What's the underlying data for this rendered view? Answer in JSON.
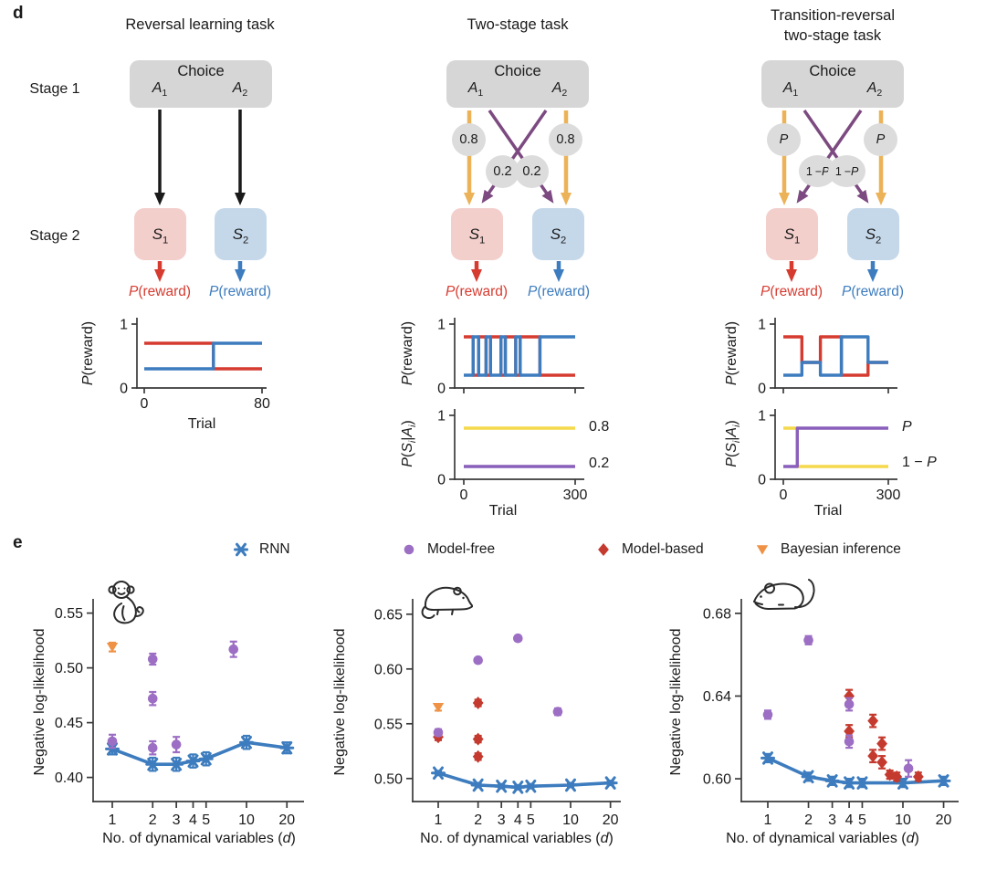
{
  "colors": {
    "black": "#1A1A1A",
    "blue": "#3D7CBE",
    "purple": "#9C6EC4",
    "red": "#C53A2E",
    "orange": "#EF9245",
    "yellow": "#F5D94C",
    "line_purple": "#8A5FBC",
    "line_red": "#D63B30",
    "diagram_orange": "#ECB258",
    "diagram_purple": "#7C4A80",
    "gray_box": "#D6D6D6",
    "gray_circle": "#DCDCDC",
    "pink_box": "#F3CFCC",
    "blue_box": "#C5D8EA"
  },
  "panel_d": {
    "label": "d",
    "stage1_label": "Stage 1",
    "stage2_label": "Stage 2",
    "tasks": [
      {
        "title_lines": [
          "Reversal learning task"
        ],
        "choice_label": "Choice",
        "a1": "*A*~1~",
        "a2": "*A*~2~",
        "s1": "*S*~1~",
        "s2": "*S*~2~",
        "p_reward_s1": "*P*(reward)",
        "p_reward_s2": "*P*(reward)"
      },
      {
        "title_lines": [
          "Two-stage task"
        ],
        "choice_label": "Choice",
        "a1": "*A*~1~",
        "a2": "*A*~2~",
        "s1": "*S*~1~",
        "s2": "*S*~2~",
        "p_reward_s1": "*P*(reward)",
        "p_reward_s2": "*P*(reward)",
        "probs": {
          "tl": "0.8",
          "tr": "0.8",
          "ml": "0.2",
          "mr": "0.2"
        }
      },
      {
        "title_lines": [
          "Transition-reversal",
          "two-stage task"
        ],
        "choice_label": "Choice",
        "a1": "*A*~1~",
        "a2": "*A*~2~",
        "s1": "*S*~1~",
        "s2": "*S*~2~",
        "p_reward_s1": "*P*(reward)",
        "p_reward_s2": "*P*(reward)",
        "probs": {
          "tl": "*P*",
          "tr": "*P*",
          "ml": "1 − *P*",
          "mr": "1 − *P*"
        }
      }
    ]
  },
  "chart_data": [
    {
      "id": "reversal-reward-schedule",
      "type": "line",
      "xlabel": "Trial",
      "ylabel": "*P*(reward)",
      "xlim": [
        0,
        80
      ],
      "ylim": [
        0,
        1
      ],
      "xticks": [
        0,
        80
      ],
      "yticks": [
        1,
        0
      ],
      "series": [
        {
          "name": "reward-prob-S1",
          "color": "#D63B30",
          "points": [
            [
              0,
              0.7
            ],
            [
              47,
              0.7
            ],
            [
              47,
              0.3
            ],
            [
              80,
              0.3
            ]
          ]
        },
        {
          "name": "reward-prob-S2",
          "color": "#3D7CBE",
          "points": [
            [
              0,
              0.3
            ],
            [
              47,
              0.3
            ],
            [
              47,
              0.7
            ],
            [
              80,
              0.7
            ]
          ]
        }
      ]
    },
    {
      "id": "twostage-reward-schedule",
      "type": "line",
      "xlabel": "Trial",
      "ylabel": "*P*(reward)",
      "xlim": [
        0,
        300
      ],
      "ylim": [
        0,
        1
      ],
      "xticks": [
        0,
        300
      ],
      "yticks": [
        1,
        0
      ],
      "series": [
        {
          "name": "reward-prob-S1",
          "color": "#D63B30",
          "points": [
            [
              0,
              0.8
            ],
            [
              25,
              0.8
            ],
            [
              25,
              0.2
            ],
            [
              40,
              0.2
            ],
            [
              40,
              0.8
            ],
            [
              60,
              0.8
            ],
            [
              60,
              0.2
            ],
            [
              72,
              0.2
            ],
            [
              72,
              0.8
            ],
            [
              100,
              0.8
            ],
            [
              100,
              0.2
            ],
            [
              112,
              0.2
            ],
            [
              112,
              0.8
            ],
            [
              140,
              0.8
            ],
            [
              140,
              0.2
            ],
            [
              152,
              0.2
            ],
            [
              152,
              0.8
            ],
            [
              205,
              0.8
            ],
            [
              205,
              0.2
            ],
            [
              300,
              0.2
            ]
          ]
        },
        {
          "name": "reward-prob-S2",
          "color": "#3D7CBE",
          "points": [
            [
              0,
              0.2
            ],
            [
              25,
              0.2
            ],
            [
              25,
              0.8
            ],
            [
              40,
              0.8
            ],
            [
              40,
              0.2
            ],
            [
              60,
              0.2
            ],
            [
              60,
              0.8
            ],
            [
              72,
              0.8
            ],
            [
              72,
              0.2
            ],
            [
              100,
              0.2
            ],
            [
              100,
              0.8
            ],
            [
              112,
              0.8
            ],
            [
              112,
              0.2
            ],
            [
              140,
              0.2
            ],
            [
              140,
              0.8
            ],
            [
              152,
              0.8
            ],
            [
              152,
              0.2
            ],
            [
              205,
              0.2
            ],
            [
              205,
              0.8
            ],
            [
              300,
              0.8
            ]
          ]
        }
      ]
    },
    {
      "id": "twostage-transition-prob",
      "type": "line",
      "xlabel": "Trial",
      "ylabel": "*P*(*S*~*i*~|*A*~*i*~)",
      "xlim": [
        0,
        300
      ],
      "ylim": [
        0,
        1
      ],
      "xticks": [
        0,
        300
      ],
      "yticks": [
        1,
        0
      ],
      "right_labels": [
        {
          "text": "0.8",
          "value": 0.8
        },
        {
          "text": "0.2",
          "value": 0.2
        }
      ],
      "series": [
        {
          "name": "common-transition",
          "color": "#F5D94C",
          "points": [
            [
              0,
              0.8
            ],
            [
              300,
              0.8
            ]
          ]
        },
        {
          "name": "rare-transition",
          "color": "#8A5FBC",
          "points": [
            [
              0,
              0.2
            ],
            [
              300,
              0.2
            ]
          ]
        }
      ]
    },
    {
      "id": "transition-reversal-reward-schedule",
      "type": "line",
      "xlabel": "Trial",
      "ylabel": "*P*(reward)",
      "xlim": [
        0,
        300
      ],
      "ylim": [
        0,
        1
      ],
      "xticks": [
        0,
        300
      ],
      "yticks": [
        1,
        0
      ],
      "series": [
        {
          "name": "reward-prob-S1",
          "color": "#D63B30",
          "points": [
            [
              0,
              0.8
            ],
            [
              53,
              0.8
            ],
            [
              53,
              0.4
            ],
            [
              106,
              0.4
            ],
            [
              106,
              0.8
            ],
            [
              166,
              0.8
            ],
            [
              166,
              0.2
            ],
            [
              242,
              0.2
            ],
            [
              242,
              0.4
            ],
            [
              300,
              0.4
            ]
          ]
        },
        {
          "name": "reward-prob-S2",
          "color": "#3D7CBE",
          "points": [
            [
              0,
              0.2
            ],
            [
              53,
              0.2
            ],
            [
              53,
              0.4
            ],
            [
              106,
              0.4
            ],
            [
              106,
              0.2
            ],
            [
              166,
              0.2
            ],
            [
              166,
              0.8
            ],
            [
              242,
              0.8
            ],
            [
              242,
              0.4
            ],
            [
              300,
              0.4
            ]
          ]
        }
      ]
    },
    {
      "id": "transition-reversal-transition-prob",
      "type": "line",
      "xlabel": "Trial",
      "ylabel": "*P*(*S*~*i*~|*A*~*i*~)",
      "xlim": [
        0,
        300
      ],
      "ylim": [
        0,
        1
      ],
      "xticks": [
        0,
        300
      ],
      "yticks": [
        1,
        0
      ],
      "right_labels": [
        {
          "text": "*P*",
          "value": 0.8
        },
        {
          "text": "1 − *P*",
          "value": 0.2
        }
      ],
      "series": [
        {
          "name": "transition-prob-yellow",
          "color": "#F5D94C",
          "points": [
            [
              0,
              0.8
            ],
            [
              40,
              0.8
            ],
            [
              40,
              0.2
            ],
            [
              300,
              0.2
            ]
          ]
        },
        {
          "name": "transition-prob-purple",
          "color": "#8A5FBC",
          "points": [
            [
              0,
              0.2
            ],
            [
              40,
              0.2
            ],
            [
              40,
              0.8
            ],
            [
              300,
              0.8
            ]
          ]
        }
      ]
    },
    {
      "id": "monkey-model-comparison",
      "type": "scatter",
      "animal": "monkey",
      "xlabel": "No. of dynamical variables (*d*)",
      "ylabel": "Negative log-likelihood",
      "xscale": "log",
      "xticks": [
        1,
        2,
        3,
        4,
        5,
        10,
        20
      ],
      "yticks": [
        "0.40",
        "0.45",
        "0.50",
        "0.55"
      ],
      "ylim": [
        0.378,
        0.563
      ],
      "series": [
        {
          "name": "RNN",
          "marker": "x6",
          "color": "#3D7CBE",
          "line": true,
          "x": [
            1,
            2,
            3,
            4,
            5,
            10,
            20
          ],
          "y": [
            0.426,
            0.412,
            0.412,
            0.415,
            0.417,
            0.432,
            0.427
          ],
          "err": [
            0.005,
            0.006,
            0.006,
            0.006,
            0.006,
            0.006,
            0.005
          ]
        },
        {
          "name": "Model-free",
          "marker": "circle",
          "color": "#9C6EC4",
          "line": false,
          "x": [
            1,
            2,
            2,
            2,
            3,
            8
          ],
          "y": [
            0.433,
            0.508,
            0.472,
            0.427,
            0.43,
            0.517
          ],
          "err": [
            0.006,
            0.005,
            0.006,
            0.006,
            0.007,
            0.007
          ]
        },
        {
          "name": "Bayesian inference",
          "marker": "tri-down",
          "color": "#EF9245",
          "line": false,
          "x": [
            1
          ],
          "y": [
            0.519
          ],
          "err": [
            0.004
          ]
        }
      ]
    },
    {
      "id": "rat-model-comparison",
      "type": "scatter",
      "animal": "rat",
      "xlabel": "No. of dynamical variables (*d*)",
      "ylabel": "Negative log-likelihood",
      "xscale": "log",
      "xticks": [
        1,
        2,
        3,
        4,
        5,
        10,
        20
      ],
      "yticks": [
        "0.50",
        "0.55",
        "0.60",
        "0.65"
      ],
      "ylim": [
        0.479,
        0.664
      ],
      "series": [
        {
          "name": "RNN",
          "marker": "x6",
          "color": "#3D7CBE",
          "line": true,
          "x": [
            1,
            2,
            3,
            4,
            5,
            10,
            20
          ],
          "y": [
            0.505,
            0.494,
            0.493,
            0.492,
            0.493,
            0.494,
            0.496
          ],
          "err": [
            0.002,
            0.002,
            0.002,
            0.002,
            0.002,
            0.002,
            0.002
          ]
        },
        {
          "name": "Model-based",
          "marker": "diamond",
          "color": "#C53A2E",
          "line": false,
          "x": [
            1,
            2,
            2,
            2
          ],
          "y": [
            0.538,
            0.569,
            0.536,
            0.52
          ],
          "err": [
            0.003,
            0.003,
            0.003,
            0.003
          ]
        },
        {
          "name": "Model-free",
          "marker": "circle",
          "color": "#9C6EC4",
          "line": false,
          "x": [
            1,
            2,
            4,
            8
          ],
          "y": [
            0.542,
            0.608,
            0.628,
            0.561
          ],
          "err": [
            0.003,
            0.002,
            0.002,
            0.003
          ]
        },
        {
          "name": "Bayesian inference",
          "marker": "tri-down",
          "color": "#EF9245",
          "line": false,
          "x": [
            1
          ],
          "y": [
            0.565
          ],
          "err": [
            0.003
          ]
        }
      ]
    },
    {
      "id": "mouse-model-comparison",
      "type": "scatter",
      "animal": "mouse",
      "xlabel": "No. of dynamical variables (*d*)",
      "ylabel": "Negative log-likelihood",
      "xscale": "log",
      "xticks": [
        1,
        2,
        3,
        4,
        5,
        10,
        20
      ],
      "yticks": [
        "0.60",
        "0.64",
        "0.68"
      ],
      "ylim": [
        0.589,
        0.687
      ],
      "series": [
        {
          "name": "RNN",
          "marker": "x6",
          "color": "#3D7CBE",
          "line": true,
          "x": [
            1,
            2,
            3,
            4,
            5,
            10,
            20
          ],
          "y": [
            0.61,
            0.601,
            0.599,
            0.598,
            0.598,
            0.598,
            0.599
          ],
          "err": [
            0.002,
            0.002,
            0.002,
            0.002,
            0.002,
            0.002,
            0.002
          ]
        },
        {
          "name": "Model-based",
          "marker": "diamond",
          "color": "#C53A2E",
          "line": false,
          "x": [
            4,
            4,
            6,
            6,
            7,
            7,
            8,
            9,
            13
          ],
          "y": [
            0.64,
            0.623,
            0.628,
            0.611,
            0.617,
            0.608,
            0.602,
            0.601,
            0.601
          ],
          "err": [
            0.003,
            0.003,
            0.003,
            0.003,
            0.003,
            0.003,
            0.002,
            0.002,
            0.002
          ]
        },
        {
          "name": "Model-free",
          "marker": "circle",
          "color": "#9C6EC4",
          "line": false,
          "x": [
            1,
            2,
            4,
            4,
            11
          ],
          "y": [
            0.631,
            0.667,
            0.636,
            0.618,
            0.605
          ],
          "err": [
            0.002,
            0.002,
            0.003,
            0.003,
            0.004
          ]
        }
      ]
    }
  ],
  "panel_e": {
    "label": "e",
    "legend": [
      {
        "label": "RNN",
        "marker": "x6",
        "color": "#3D7CBE"
      },
      {
        "label": "Model-free",
        "marker": "circle",
        "color": "#9C6EC4"
      },
      {
        "label": "Model-based",
        "marker": "diamond",
        "color": "#C53A2E"
      },
      {
        "label": "Bayesian inference",
        "marker": "tri-down",
        "color": "#EF9245"
      }
    ],
    "animals": [
      "monkey",
      "rat",
      "mouse"
    ]
  }
}
